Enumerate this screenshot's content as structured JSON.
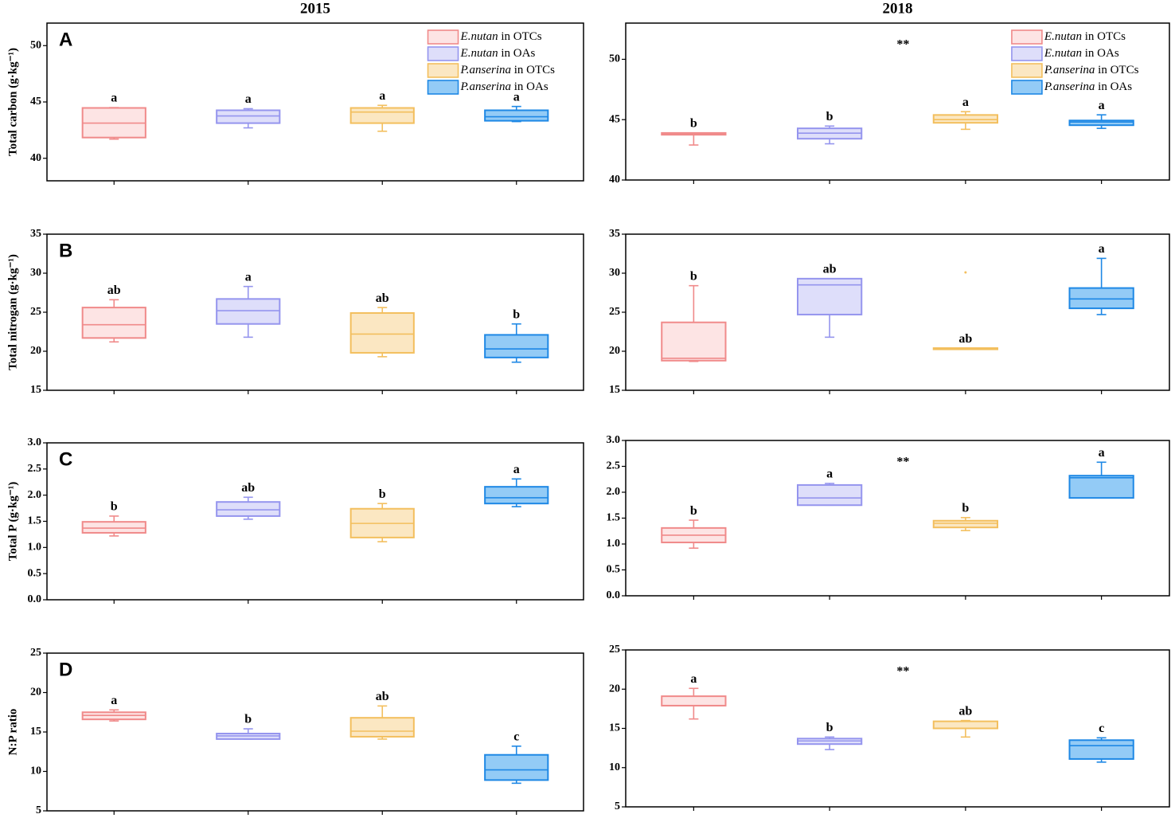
{
  "series": [
    {
      "name": "E.nutan in OTCs",
      "color": "#f08a8a",
      "fill": "#fde4e4"
    },
    {
      "name": "E.nutan in OAs",
      "color": "#9595ee",
      "fill": "#dedefa"
    },
    {
      "name": "P.anserina in OTCs",
      "color": "#f3bf5e",
      "fill": "#fbe7c2"
    },
    {
      "name": "P.anserina in OAs",
      "color": "#1e88e5",
      "fill": "#93cbf6"
    }
  ],
  "chart_data": [
    {
      "type": "box",
      "title": "2015",
      "panel": "A",
      "ylabel": "Total carbon (g·kg⁻¹)",
      "legend": "upper right",
      "ylim": [
        38,
        52
      ],
      "yticks": [
        40,
        45,
        50
      ],
      "groups": [
        {
          "min": 41.7,
          "q1": 41.84,
          "median": 43.12,
          "q3": 44.47,
          "max": 44.5,
          "letter": "a"
        },
        {
          "min": 42.7,
          "q1": 43.12,
          "median": 43.76,
          "q3": 44.26,
          "max": 44.4,
          "letter": "a"
        },
        {
          "min": 42.4,
          "q1": 43.12,
          "median": 44.1,
          "q3": 44.47,
          "max": 44.7,
          "letter": "a"
        },
        {
          "min": 43.26,
          "q1": 43.33,
          "median": 43.69,
          "q3": 44.26,
          "max": 44.6,
          "letter": "a"
        }
      ]
    },
    {
      "type": "box",
      "title": "2018",
      "legend": "upper right",
      "annotation": "**",
      "ylim": [
        40,
        53
      ],
      "yticks": [
        40,
        45,
        50
      ],
      "groups": [
        {
          "min": 42.9,
          "q1": 43.75,
          "median": 43.8,
          "q3": 43.9,
          "max": 43.9,
          "letter": "b"
        },
        {
          "min": 43.0,
          "q1": 43.42,
          "median": 43.88,
          "q3": 44.28,
          "max": 44.47,
          "letter": "b"
        },
        {
          "min": 44.2,
          "q1": 44.74,
          "median": 45.0,
          "q3": 45.39,
          "max": 45.66,
          "letter": "a"
        },
        {
          "min": 44.28,
          "q1": 44.54,
          "median": 44.8,
          "q3": 44.93,
          "max": 45.4,
          "letter": "a"
        }
      ]
    },
    {
      "type": "box",
      "panel": "B",
      "ylabel": "Total nitrogan (g·kg⁻¹)",
      "ylim": [
        15,
        35
      ],
      "yticks": [
        15,
        20,
        25,
        30,
        35
      ],
      "groups": [
        {
          "min": 21.2,
          "q1": 21.7,
          "median": 23.4,
          "q3": 25.6,
          "max": 26.6,
          "letter": "ab"
        },
        {
          "min": 21.8,
          "q1": 23.5,
          "median": 25.2,
          "q3": 26.7,
          "max": 28.3,
          "letter": "a"
        },
        {
          "min": 19.3,
          "q1": 19.8,
          "median": 22.2,
          "q3": 24.9,
          "max": 25.6,
          "letter": "ab"
        },
        {
          "min": 18.6,
          "q1": 19.2,
          "median": 20.3,
          "q3": 22.1,
          "max": 23.5,
          "letter": "b"
        }
      ]
    },
    {
      "type": "box",
      "ylim": [
        15,
        35
      ],
      "yticks": [
        15,
        20,
        25,
        30,
        35
      ],
      "groups": [
        {
          "min": 18.7,
          "q1": 18.8,
          "median": 19.1,
          "q3": 23.7,
          "max": 28.4,
          "letter": "b"
        },
        {
          "min": 21.8,
          "q1": 24.7,
          "median": 28.5,
          "q3": 29.3,
          "max": 29.3,
          "letter": "ab"
        },
        {
          "min": 20.3,
          "q1": 20.3,
          "median": 20.4,
          "q3": 20.4,
          "max": 20.4,
          "letter": "ab",
          "outliers": [
            30.1
          ]
        },
        {
          "min": 24.7,
          "q1": 25.5,
          "median": 26.7,
          "q3": 28.1,
          "max": 31.9,
          "letter": "a"
        }
      ]
    },
    {
      "type": "box",
      "panel": "C",
      "ylabel": "Total P (g·kg⁻¹)",
      "ylim": [
        0,
        3
      ],
      "yticks": [
        {
          "value": 0,
          "label": "0.0"
        },
        0.5,
        {
          "value": 1,
          "label": "1.0"
        },
        1.5,
        {
          "value": 2,
          "label": "2.0"
        },
        2.5,
        {
          "value": 3,
          "label": "3.0"
        }
      ],
      "groups": [
        {
          "min": 1.22,
          "q1": 1.28,
          "median": 1.37,
          "q3": 1.49,
          "max": 1.6,
          "letter": "b"
        },
        {
          "min": 1.54,
          "q1": 1.6,
          "median": 1.72,
          "q3": 1.87,
          "max": 1.96,
          "letter": "ab"
        },
        {
          "min": 1.11,
          "q1": 1.19,
          "median": 1.46,
          "q3": 1.74,
          "max": 1.84,
          "letter": "b"
        },
        {
          "min": 1.78,
          "q1": 1.84,
          "median": 1.95,
          "q3": 2.16,
          "max": 2.31,
          "letter": "a"
        }
      ]
    },
    {
      "type": "box",
      "annotation": "**",
      "ylim": [
        0,
        3
      ],
      "yticks": [
        {
          "value": 0,
          "label": "0.0"
        },
        0.5,
        {
          "value": 1,
          "label": "1.0"
        },
        1.5,
        {
          "value": 2,
          "label": "2.0"
        },
        2.5,
        {
          "value": 3,
          "label": "3.0"
        }
      ],
      "groups": [
        {
          "min": 0.92,
          "q1": 1.03,
          "median": 1.17,
          "q3": 1.31,
          "max": 1.46,
          "letter": "b"
        },
        {
          "min": 1.75,
          "q1": 1.75,
          "median": 1.89,
          "q3": 2.14,
          "max": 2.17,
          "letter": "a"
        },
        {
          "min": 1.26,
          "q1": 1.32,
          "median": 1.4,
          "q3": 1.45,
          "max": 1.51,
          "letter": "b"
        },
        {
          "min": 1.89,
          "q1": 1.89,
          "median": 2.28,
          "q3": 2.32,
          "max": 2.58,
          "letter": "a"
        }
      ]
    },
    {
      "type": "box",
      "panel": "D",
      "ylabel": "N:P ratio",
      "ylim": [
        5,
        25
      ],
      "yticks": [
        5,
        10,
        15,
        20,
        25
      ],
      "groups": [
        {
          "min": 16.4,
          "q1": 16.6,
          "median": 17.1,
          "q3": 17.5,
          "max": 17.8,
          "letter": "a"
        },
        {
          "min": 14.1,
          "q1": 14.1,
          "median": 14.5,
          "q3": 14.8,
          "max": 15.4,
          "letter": "b"
        },
        {
          "min": 14.1,
          "q1": 14.4,
          "median": 15.1,
          "q3": 16.8,
          "max": 18.3,
          "letter": "ab"
        },
        {
          "min": 8.5,
          "q1": 8.9,
          "median": 10.2,
          "q3": 12.1,
          "max": 13.2,
          "letter": "c"
        }
      ]
    },
    {
      "type": "box",
      "annotation": "**",
      "ylim": [
        5,
        25
      ],
      "yticks": [
        5,
        10,
        15,
        20,
        25
      ],
      "groups": [
        {
          "min": 16.2,
          "q1": 17.9,
          "median": 17.9,
          "q3": 19.1,
          "max": 20.1,
          "letter": "a"
        },
        {
          "min": 12.3,
          "q1": 13.0,
          "median": 13.4,
          "q3": 13.7,
          "max": 13.9,
          "letter": "b"
        },
        {
          "min": 13.9,
          "q1": 15.0,
          "median": 15.0,
          "q3": 15.9,
          "max": 16.0,
          "letter": "ab"
        },
        {
          "min": 10.7,
          "q1": 11.1,
          "median": 12.8,
          "q3": 13.5,
          "max": 13.8,
          "letter": "c"
        }
      ]
    }
  ]
}
